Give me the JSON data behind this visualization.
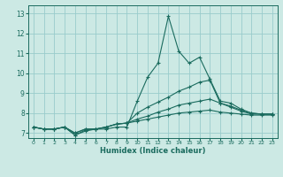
{
  "xlabel": "Humidex (Indice chaleur)",
  "bg_color": "#cce9e4",
  "grid_color": "#99cccc",
  "line_color": "#1a6b5e",
  "xlim": [
    -0.5,
    23.5
  ],
  "ylim": [
    6.75,
    13.4
  ],
  "yticks": [
    7,
    8,
    9,
    10,
    11,
    12,
    13
  ],
  "xticks": [
    0,
    1,
    2,
    3,
    4,
    5,
    6,
    7,
    8,
    9,
    10,
    11,
    12,
    13,
    14,
    15,
    16,
    17,
    18,
    19,
    20,
    21,
    22,
    23
  ],
  "series": [
    {
      "x": [
        0,
        1,
        2,
        3,
        4,
        5,
        6,
        7,
        8,
        9,
        10,
        11,
        12,
        13,
        14,
        15,
        16,
        17,
        18,
        19,
        20,
        21,
        22,
        23
      ],
      "y": [
        7.3,
        7.2,
        7.2,
        7.3,
        6.9,
        7.1,
        7.2,
        7.2,
        7.3,
        7.3,
        8.6,
        9.8,
        10.5,
        12.85,
        11.1,
        10.5,
        10.8,
        9.7,
        8.6,
        8.5,
        8.2,
        8.0,
        7.95,
        7.95
      ]
    },
    {
      "x": [
        0,
        1,
        2,
        3,
        4,
        5,
        6,
        7,
        8,
        9,
        10,
        11,
        12,
        13,
        14,
        15,
        16,
        17,
        18,
        19,
        20,
        21,
        22,
        23
      ],
      "y": [
        7.3,
        7.2,
        7.2,
        7.3,
        6.9,
        7.15,
        7.2,
        7.3,
        7.45,
        7.5,
        8.0,
        8.3,
        8.55,
        8.8,
        9.1,
        9.3,
        9.55,
        9.65,
        8.5,
        8.35,
        8.15,
        8.0,
        7.95,
        7.95
      ]
    },
    {
      "x": [
        0,
        1,
        2,
        3,
        4,
        5,
        6,
        7,
        8,
        9,
        10,
        11,
        12,
        13,
        14,
        15,
        16,
        17,
        18,
        19,
        20,
        21,
        22,
        23
      ],
      "y": [
        7.3,
        7.2,
        7.2,
        7.3,
        7.0,
        7.2,
        7.2,
        7.3,
        7.45,
        7.5,
        7.7,
        7.85,
        8.05,
        8.2,
        8.4,
        8.5,
        8.6,
        8.7,
        8.5,
        8.3,
        8.1,
        7.95,
        7.95,
        7.95
      ]
    },
    {
      "x": [
        0,
        1,
        2,
        3,
        4,
        5,
        6,
        7,
        8,
        9,
        10,
        11,
        12,
        13,
        14,
        15,
        16,
        17,
        18,
        19,
        20,
        21,
        22,
        23
      ],
      "y": [
        7.3,
        7.2,
        7.2,
        7.3,
        7.0,
        7.2,
        7.2,
        7.3,
        7.45,
        7.5,
        7.6,
        7.7,
        7.8,
        7.9,
        8.0,
        8.05,
        8.1,
        8.15,
        8.05,
        8.0,
        7.95,
        7.9,
        7.9,
        7.9
      ]
    }
  ]
}
